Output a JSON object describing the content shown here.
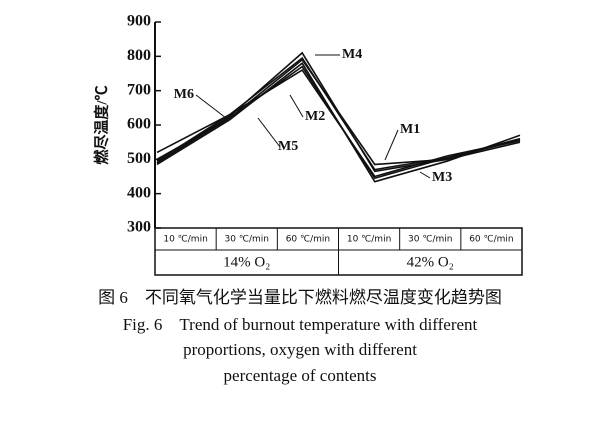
{
  "chart_data": {
    "type": "line",
    "y_label": "燃尽温度/℃",
    "categories": [
      "10 ℃/min",
      "30 ℃/min",
      "60 ℃/min",
      "10 ℃/min",
      "30 ℃/min",
      "60 ℃/min"
    ],
    "group_labels": [
      "14% O₂",
      "42% O₂"
    ],
    "series": [
      {
        "name": "M1",
        "color": "#111111",
        "values": [
          490,
          620,
          790,
          485,
          500,
          560
        ]
      },
      {
        "name": "M2",
        "color": "#111111",
        "values": [
          495,
          630,
          760,
          450,
          510,
          555
        ]
      },
      {
        "name": "M3",
        "color": "#111111",
        "values": [
          485,
          615,
          780,
          435,
          495,
          570
        ]
      },
      {
        "name": "M4",
        "color": "#111111",
        "values": [
          490,
          625,
          810,
          465,
          500,
          550
        ]
      },
      {
        "name": "M5",
        "color": "#111111",
        "values": [
          500,
          620,
          770,
          445,
          505,
          560
        ]
      },
      {
        "name": "M6",
        "color": "#111111",
        "values": [
          520,
          630,
          795,
          470,
          505,
          555
        ]
      }
    ],
    "ylim": [
      300,
      900
    ],
    "yticks": [
      300,
      400,
      500,
      600,
      700,
      800,
      900
    ]
  },
  "caption": {
    "zh": "图 6　不同氧气化学当量比下燃料燃尽温度变化趋势图",
    "en": [
      "Fig. 6　Trend of burnout temperature with different",
      "proportions, oxygen with different",
      "percentage of contents"
    ]
  }
}
